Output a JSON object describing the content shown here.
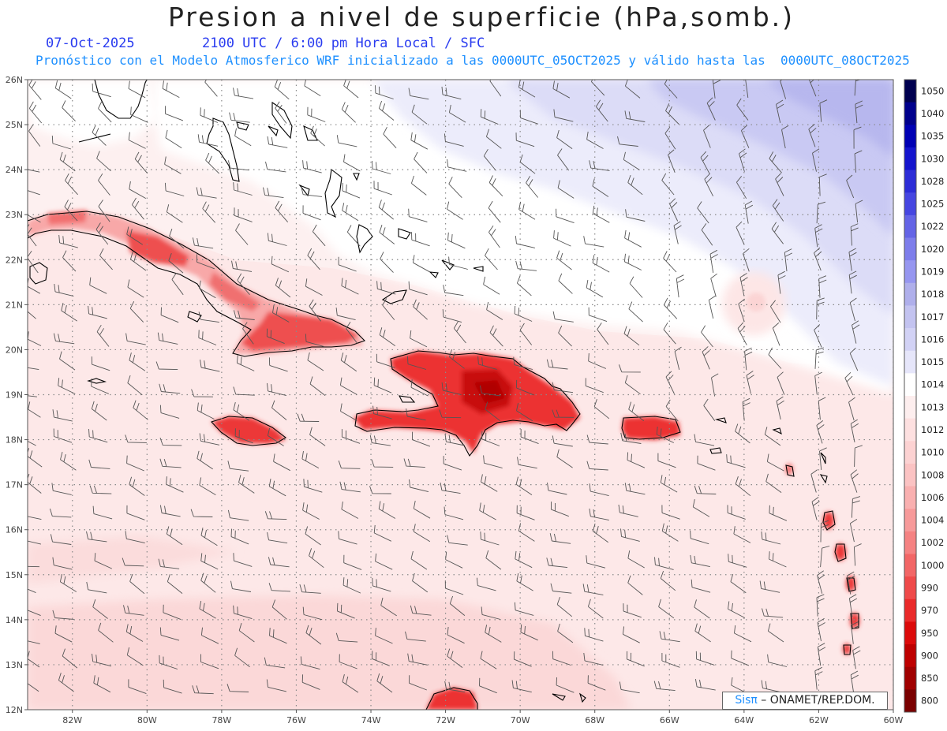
{
  "title": "Presion a nivel de superficie (hPa,somb.)",
  "subtitle_date": "07-Oct-2025",
  "subtitle_time": "2100 UTC / 6:00 pm Hora Local / SFC",
  "subtitle_model": "Pronóstico con el Modelo Atmosferico WRF inicializado a las 0000UTC_05OCT2025 y válido hasta las  0000UTC_08OCT2025",
  "credit_sis": "Sisπ",
  "credit_org": " – ONAMET/REP.DOM.",
  "map": {
    "lon_range": [
      -83.2,
      -60
    ],
    "lat_range": [
      12,
      26
    ],
    "lat_ticks": [
      "26N",
      "25N",
      "24N",
      "23N",
      "22N",
      "21N",
      "20N",
      "19N",
      "18N",
      "17N",
      "16N",
      "15N",
      "14N",
      "13N",
      "12N"
    ],
    "lon_ticks": [
      "82W",
      "80W",
      "78W",
      "76W",
      "74W",
      "72W",
      "70W",
      "68W",
      "66W",
      "64W",
      "62W",
      "60W"
    ]
  },
  "colorbar": {
    "levels": [
      "1050",
      "1040",
      "1035",
      "1030",
      "1028",
      "1025",
      "1022",
      "1020",
      "1019",
      "1018",
      "1017",
      "1016",
      "1015",
      "1014",
      "1013",
      "1012",
      "1010",
      "1008",
      "1006",
      "1004",
      "1002",
      "1000",
      "990",
      "970",
      "950",
      "900",
      "850",
      "800"
    ],
    "colors": [
      "#000050",
      "#00008c",
      "#0000b4",
      "#1414cd",
      "#2d2dd7",
      "#4646e1",
      "#6464e6",
      "#7d7deb",
      "#9696f0",
      "#afafeb",
      "#c3c3f0",
      "#d2d2f5",
      "#e6e6fa",
      "#ffffff",
      "#fdeeee",
      "#fde0e0",
      "#fcd2d2",
      "#fbc3c3",
      "#f9b0b0",
      "#f79a9a",
      "#f58282",
      "#f26666",
      "#ef4a4a",
      "#ea2a2a",
      "#dc0a0a",
      "#be0000",
      "#a00000",
      "#7a0000"
    ]
  }
}
